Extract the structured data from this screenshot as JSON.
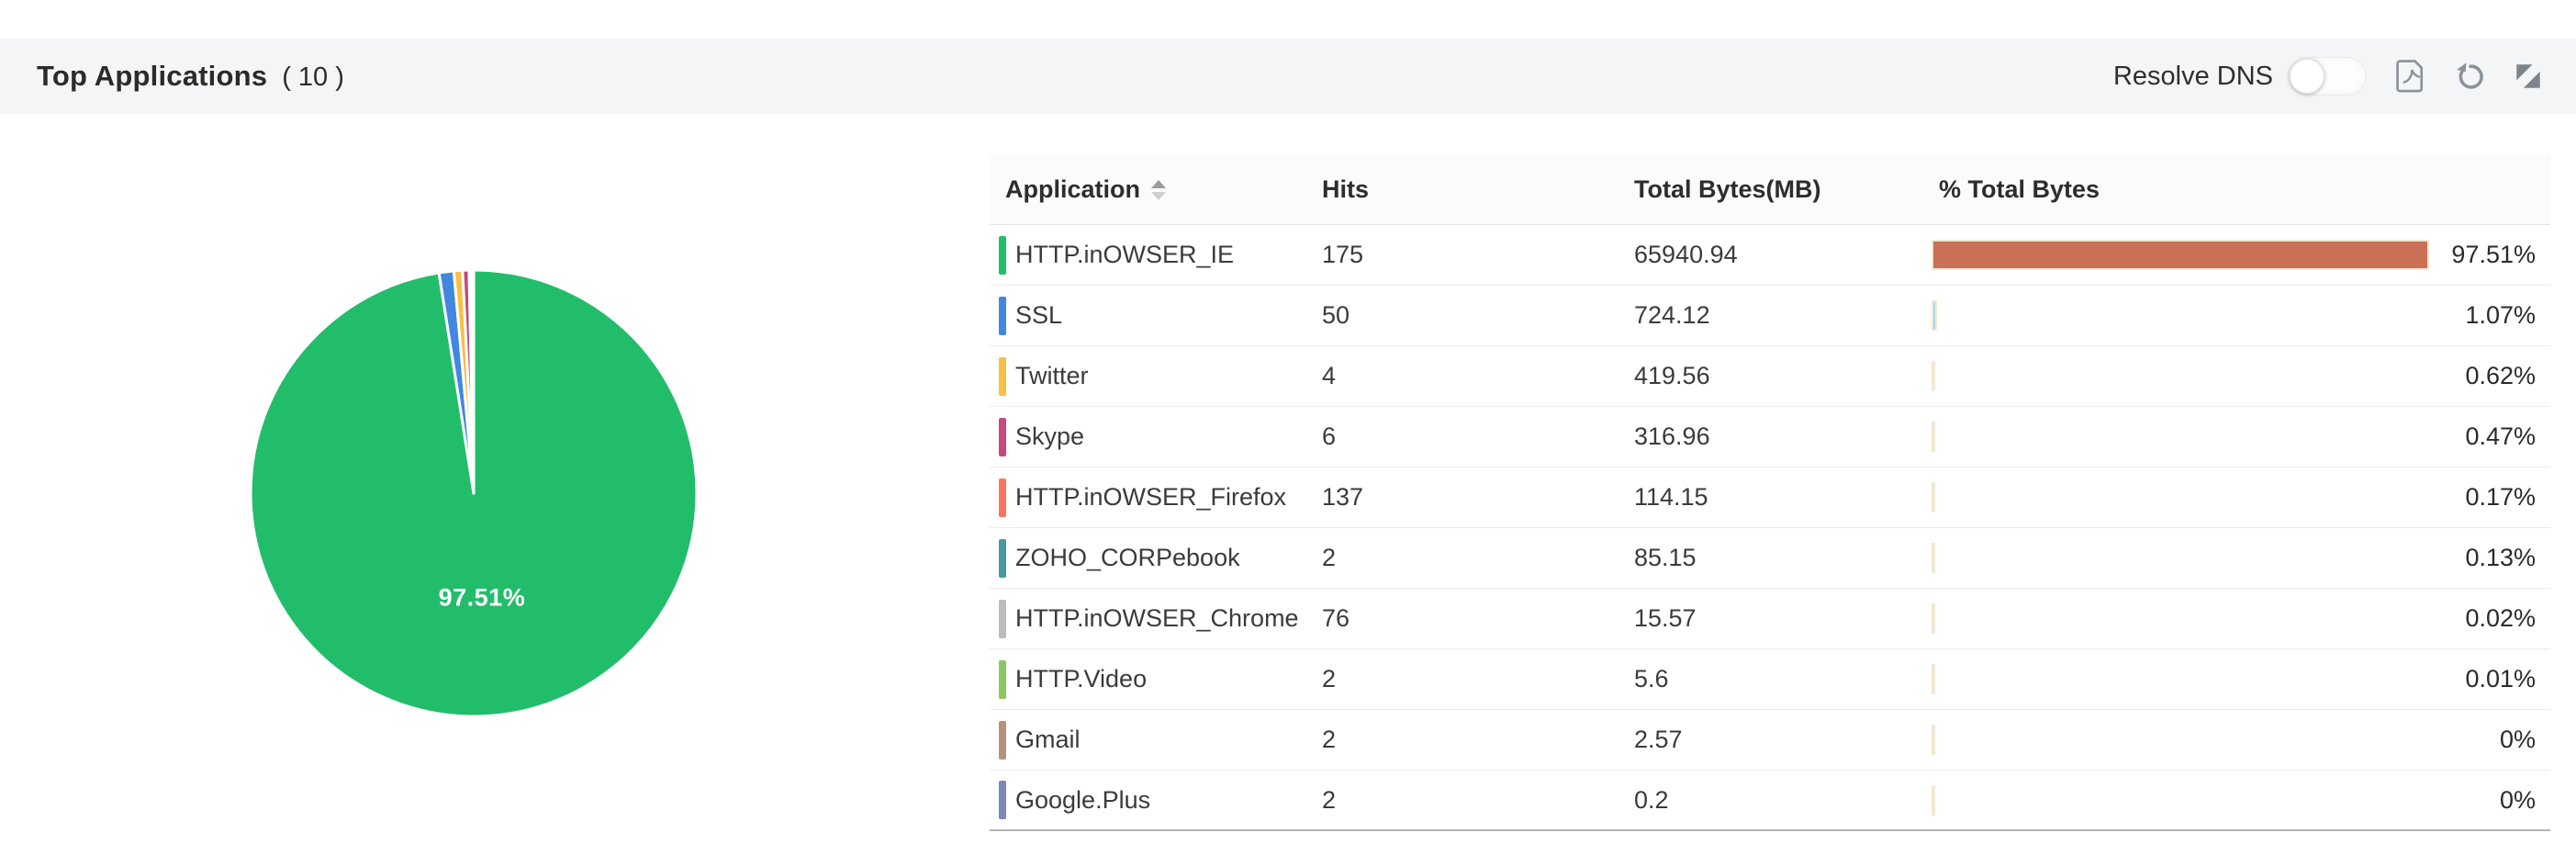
{
  "header": {
    "title": "Top Applications",
    "count": "( 10 )",
    "resolve_dns_label": "Resolve DNS",
    "toggle_state": "off",
    "icons": {
      "export": "pdf-export-icon",
      "refresh": "refresh-icon",
      "collapse": "collapse-widget-icon"
    }
  },
  "table": {
    "columns": [
      {
        "label": "Application",
        "sortable": true
      },
      {
        "label": "Hits"
      },
      {
        "label": "Total Bytes(MB)"
      },
      {
        "label": "% Total Bytes"
      }
    ],
    "rows": [
      {
        "application": "HTTP.inOWSER_IE",
        "hits": "175",
        "total_bytes_mb": "65940.94",
        "pct_label": "97.51%",
        "pct_value": 97.51,
        "swatch_color": "#22bd6b",
        "bar_color": "#c97057"
      },
      {
        "application": "SSL",
        "hits": "50",
        "total_bytes_mb": "724.12",
        "pct_label": "1.07%",
        "pct_value": 1.07,
        "swatch_color": "#4187e0",
        "bar_color": "#a9d8f2"
      },
      {
        "application": "Twitter",
        "hits": "4",
        "total_bytes_mb": "419.56",
        "pct_label": "0.62%",
        "pct_value": 0.62,
        "swatch_color": "#f8c043",
        "bar_color": "#a9d8f2"
      },
      {
        "application": "Skype",
        "hits": "6",
        "total_bytes_mb": "316.96",
        "pct_label": "0.47%",
        "pct_value": 0.47,
        "swatch_color": "#c5497f",
        "bar_color": "#efe8d2"
      },
      {
        "application": "HTTP.inOWSER_Firefox",
        "hits": "137",
        "total_bytes_mb": "114.15",
        "pct_label": "0.17%",
        "pct_value": 0.17,
        "swatch_color": "#f8745f",
        "bar_color": "#efe8d2"
      },
      {
        "application": "ZOHO_CORPebook",
        "hits": "2",
        "total_bytes_mb": "85.15",
        "pct_label": "0.13%",
        "pct_value": 0.13,
        "swatch_color": "#48999a",
        "bar_color": "#efe8d2"
      },
      {
        "application": "HTTP.inOWSER_Chrome",
        "hits": "76",
        "total_bytes_mb": "15.57",
        "pct_label": "0.02%",
        "pct_value": 0.02,
        "swatch_color": "#bcbcbc",
        "bar_color": "#efe8d2"
      },
      {
        "application": "HTTP.Video",
        "hits": "2",
        "total_bytes_mb": "5.6",
        "pct_label": "0.01%",
        "pct_value": 0.01,
        "swatch_color": "#8ac662",
        "bar_color": "#efe8d2"
      },
      {
        "application": "Gmail",
        "hits": "2",
        "total_bytes_mb": "2.57",
        "pct_label": "0%",
        "pct_value": 0,
        "swatch_color": "#b4927c",
        "bar_color": "#efe8d2"
      },
      {
        "application": "Google.Plus",
        "hits": "2",
        "total_bytes_mb": "0.2",
        "pct_label": "0%",
        "pct_value": 0,
        "swatch_color": "#7b87b4",
        "bar_color": "#efe8d2"
      }
    ]
  },
  "chart_data": {
    "type": "pie",
    "title": "Top Applications by % Total Bytes",
    "labels": [
      "HTTP.inOWSER_IE",
      "SSL",
      "Twitter",
      "Skype",
      "HTTP.inOWSER_Firefox",
      "ZOHO_CORPebook",
      "HTTP.inOWSER_Chrome",
      "HTTP.Video",
      "Gmail",
      "Google.Plus"
    ],
    "values": [
      97.51,
      1.07,
      0.62,
      0.47,
      0.17,
      0.13,
      0.02,
      0.01,
      0,
      0
    ],
    "colors": [
      "#22bd6b",
      "#4187e0",
      "#f8c043",
      "#c5497f",
      "#f8745f",
      "#48999a",
      "#bcbcbc",
      "#8ac662",
      "#b4927c",
      "#7b87b4"
    ],
    "center_label": "97.51%",
    "start_angle_deg": 0,
    "direction": "clockwise",
    "slice_border_color": "#ffffff",
    "legend": "none"
  },
  "colors": {
    "header_bar_bg": "#f4f5f6",
    "table_header_bg": "#fafbfb",
    "row_divider": "#ececec",
    "table_bottom_border": "#b5b5b5",
    "pct_bar_border": "#efe8d2",
    "icon_gray": "#8b9299",
    "text_dark": "#2d2d2d"
  }
}
